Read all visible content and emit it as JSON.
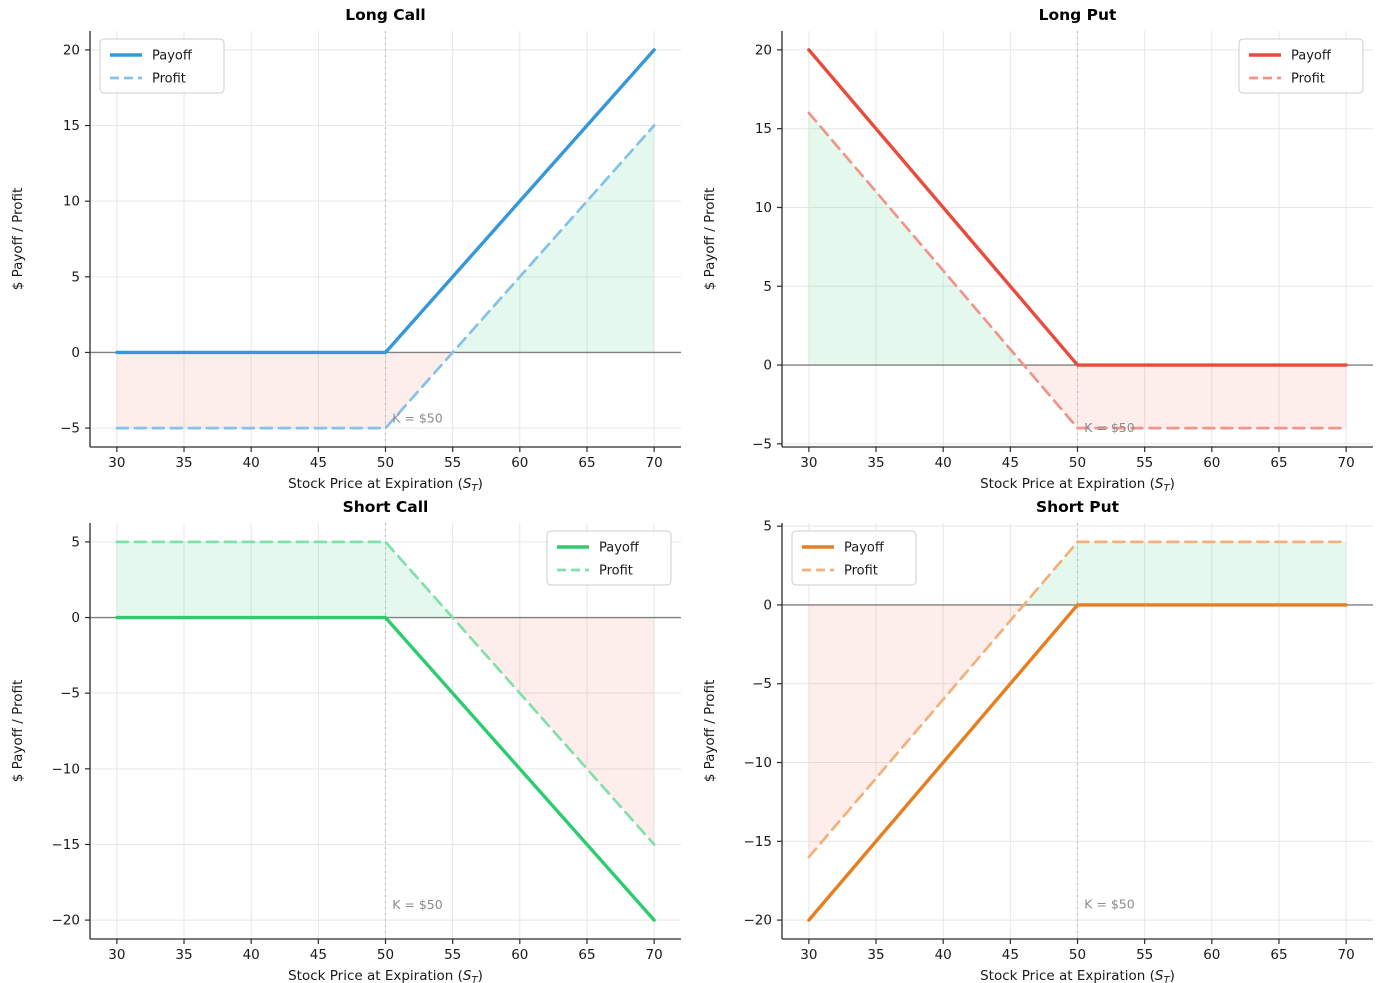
{
  "figure": {
    "background": "#ffffff",
    "shared": {
      "ylabel": "$ Payoff / Profit",
      "xlabel_parts": {
        "prefix": "Stock Price at Expiration (",
        "var": "S",
        "sub": "T",
        "suffix": ")"
      },
      "legend_labels": {
        "payoff": "Payoff",
        "profit": "Profit"
      },
      "annotation_text": "K = $50",
      "strike": 50,
      "xlim": [
        28,
        72
      ],
      "x_ticks": [
        30,
        35,
        40,
        45,
        50,
        55,
        60,
        65,
        70
      ],
      "colors": {
        "grid": "#e7e7e7",
        "zero_line": "#808080",
        "strike_line": "#bdbdbd",
        "annotation": "#8c8c8c",
        "spine": "#2b2b2b",
        "tick_label": "#1a1a1a",
        "profit_fill_green": "rgba(46,204,113,0.13)",
        "loss_fill_red": "rgba(231,76,60,0.10)",
        "legend_border": "#cccccc",
        "legend_bg": "rgba(255,255,255,0.92)"
      }
    }
  },
  "chart_data": [
    {
      "id": "long-call",
      "type": "line",
      "title": "Long Call",
      "strike": 50,
      "premium": 5,
      "breakeven": 55,
      "x": [
        30,
        50,
        70
      ],
      "series": [
        {
          "name": "Payoff",
          "values": [
            0,
            0,
            20
          ],
          "color": "#3498db",
          "style": "solid"
        },
        {
          "name": "Profit",
          "values": [
            -5,
            -5,
            15
          ],
          "color": "#85c1e9",
          "style": "dashed"
        }
      ],
      "ylim": [
        -6.25,
        21.25
      ],
      "y_ticks": [
        -5,
        0,
        5,
        10,
        15,
        20
      ],
      "legend_pos": "upper-left",
      "annotation_xy": [
        50.5,
        -4.35
      ],
      "green_region": [
        [
          55,
          0
        ],
        [
          70,
          15
        ],
        [
          70,
          0
        ]
      ],
      "red_region": [
        [
          30,
          0
        ],
        [
          30,
          -5
        ],
        [
          50,
          -5
        ],
        [
          55,
          0
        ]
      ]
    },
    {
      "id": "long-put",
      "type": "line",
      "title": "Long Put",
      "strike": 50,
      "premium": 4,
      "breakeven": 46,
      "x": [
        30,
        50,
        70
      ],
      "series": [
        {
          "name": "Payoff",
          "values": [
            20,
            0,
            0
          ],
          "color": "#e74c3c",
          "style": "solid"
        },
        {
          "name": "Profit",
          "values": [
            16,
            -4,
            -4
          ],
          "color": "#f1948a",
          "style": "dashed"
        }
      ],
      "ylim": [
        -5.2,
        21.2
      ],
      "y_ticks": [
        -5,
        0,
        5,
        10,
        15,
        20
      ],
      "legend_pos": "upper-right",
      "annotation_xy": [
        50.5,
        -4.0
      ],
      "green_region": [
        [
          30,
          0
        ],
        [
          30,
          16
        ],
        [
          46,
          0
        ]
      ],
      "red_region": [
        [
          46,
          0
        ],
        [
          50,
          -4
        ],
        [
          70,
          -4
        ],
        [
          70,
          0
        ]
      ]
    },
    {
      "id": "short-call",
      "type": "line",
      "title": "Short Call",
      "strike": 50,
      "premium": 5,
      "breakeven": 55,
      "x": [
        30,
        50,
        70
      ],
      "series": [
        {
          "name": "Payoff",
          "values": [
            0,
            0,
            -20
          ],
          "color": "#2ecc71",
          "style": "solid"
        },
        {
          "name": "Profit",
          "values": [
            5,
            5,
            -15
          ],
          "color": "#82e0aa",
          "style": "dashed"
        }
      ],
      "ylim": [
        -21.25,
        6.25
      ],
      "y_ticks": [
        -20,
        -15,
        -10,
        -5,
        0,
        5
      ],
      "legend_pos": "upper-right",
      "annotation_xy": [
        50.5,
        -19.0
      ],
      "green_region": [
        [
          30,
          0
        ],
        [
          30,
          5
        ],
        [
          50,
          5
        ],
        [
          55,
          0
        ]
      ],
      "red_region": [
        [
          55,
          0
        ],
        [
          70,
          -15
        ],
        [
          70,
          0
        ]
      ]
    },
    {
      "id": "short-put",
      "type": "line",
      "title": "Short Put",
      "strike": 50,
      "premium": 4,
      "breakeven": 46,
      "x": [
        30,
        50,
        70
      ],
      "series": [
        {
          "name": "Payoff",
          "values": [
            -20,
            0,
            0
          ],
          "color": "#e67e22",
          "style": "solid"
        },
        {
          "name": "Profit",
          "values": [
            -16,
            4,
            4
          ],
          "color": "#f0b27a",
          "style": "dashed"
        }
      ],
      "ylim": [
        -21.2,
        5.2
      ],
      "y_ticks": [
        -20,
        -15,
        -10,
        -5,
        0,
        5
      ],
      "legend_pos": "upper-left",
      "annotation_xy": [
        50.5,
        -19.0
      ],
      "green_region": [
        [
          46,
          0
        ],
        [
          50,
          4
        ],
        [
          70,
          4
        ],
        [
          70,
          0
        ]
      ],
      "red_region": [
        [
          30,
          0
        ],
        [
          30,
          -16
        ],
        [
          46,
          0
        ]
      ]
    }
  ]
}
